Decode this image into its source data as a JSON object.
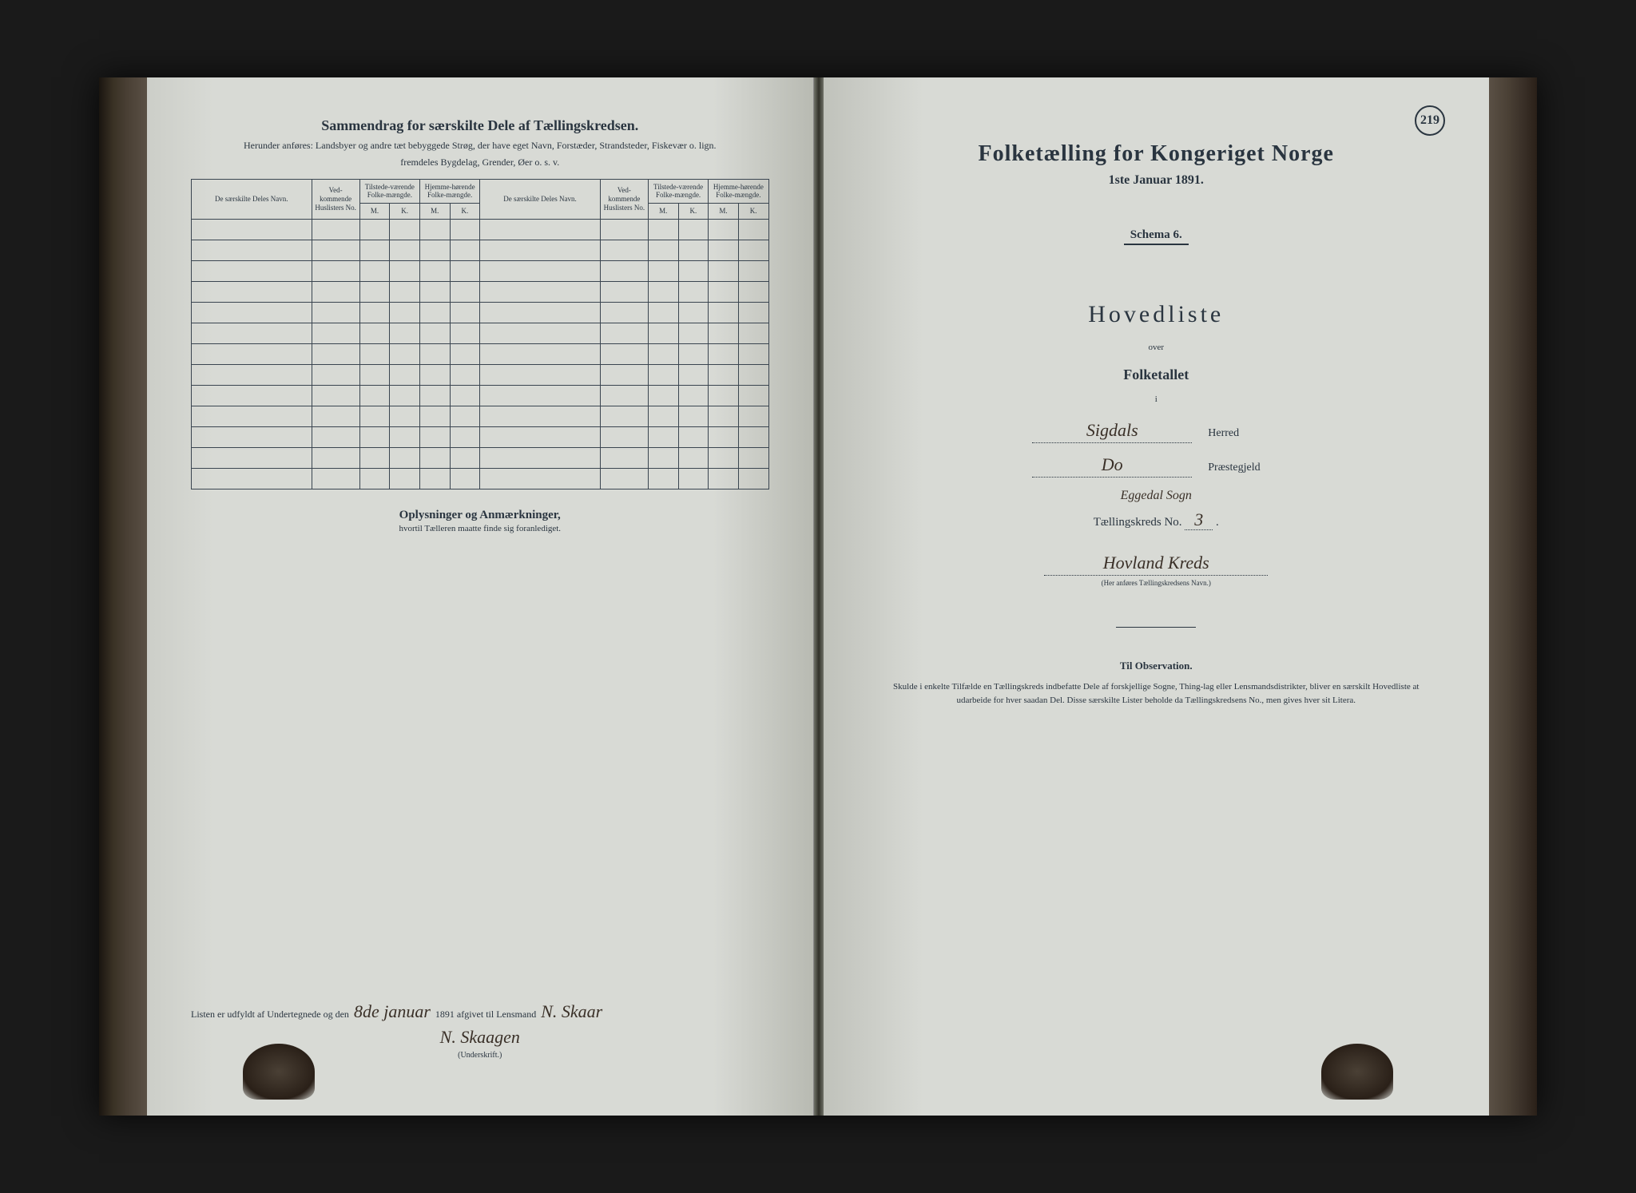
{
  "colors": {
    "paper": "#d8dad5",
    "ink": "#2a3540",
    "handwriting": "#3a3028",
    "spine": "#3a3028",
    "background": "#1a1a1a"
  },
  "leftPage": {
    "title": "Sammendrag for særskilte Dele af Tællingskredsen.",
    "subtitle1": "Herunder anføres: Landsbyer og andre tæt bebyggede Strøg, der have eget Navn, Forstæder, Strandsteder, Fiskevær o. lign.",
    "subtitle2": "fremdeles Bygdelag, Grender, Øer o. s. v.",
    "tableHeaders": {
      "navn": "De særskilte Deles Navn.",
      "huslisters": "Ved-kommende Huslisters No.",
      "tilstede": "Tilstede-værende Folke-mængde.",
      "hjemme": "Hjemme-hørende Folke-mængde.",
      "m": "M.",
      "k": "K."
    },
    "emptyRows": 13,
    "anmerkTitle": "Oplysninger og Anmærkninger,",
    "anmerkSub": "hvortil Tælleren maatte finde sig foranlediget.",
    "signature": {
      "prefix": "Listen er udfyldt af Undertegnede og den",
      "date": "8de januar",
      "year": "1891 afgivet til Lensmand",
      "name": "N. Skaar",
      "name2": "N. Skaagen",
      "caption": "(Underskrift.)"
    }
  },
  "rightPage": {
    "pageNumber": "219",
    "title": "Folketælling for Kongeriget Norge",
    "date": "1ste Januar 1891.",
    "schema": "Schema 6.",
    "hovedliste": "Hovedliste",
    "over": "over",
    "folketallet": "Folketallet",
    "i": "i",
    "herred": {
      "value": "Sigdals",
      "label": "Herred"
    },
    "praestegjeld": {
      "value": "Do",
      "label": "Præstegjeld"
    },
    "sogn": "Eggedal Sogn",
    "kreds": {
      "prefix": "Tællingskreds No.",
      "number": "3"
    },
    "kredsName": "Hovland Kreds",
    "kredsCaption": "(Her anføres Tællingskredsens Navn.)",
    "observation": {
      "title": "Til Observation.",
      "text": "Skulde i enkelte Tilfælde en Tællingskreds indbefatte Dele af forskjellige Sogne, Thing-lag eller Lensmandsdistrikter, bliver en særskilt Hovedliste at udarbeide for hver saadan Del. Disse særskilte Lister beholde da Tællingskredsens No., men gives hver sit Litera."
    }
  }
}
